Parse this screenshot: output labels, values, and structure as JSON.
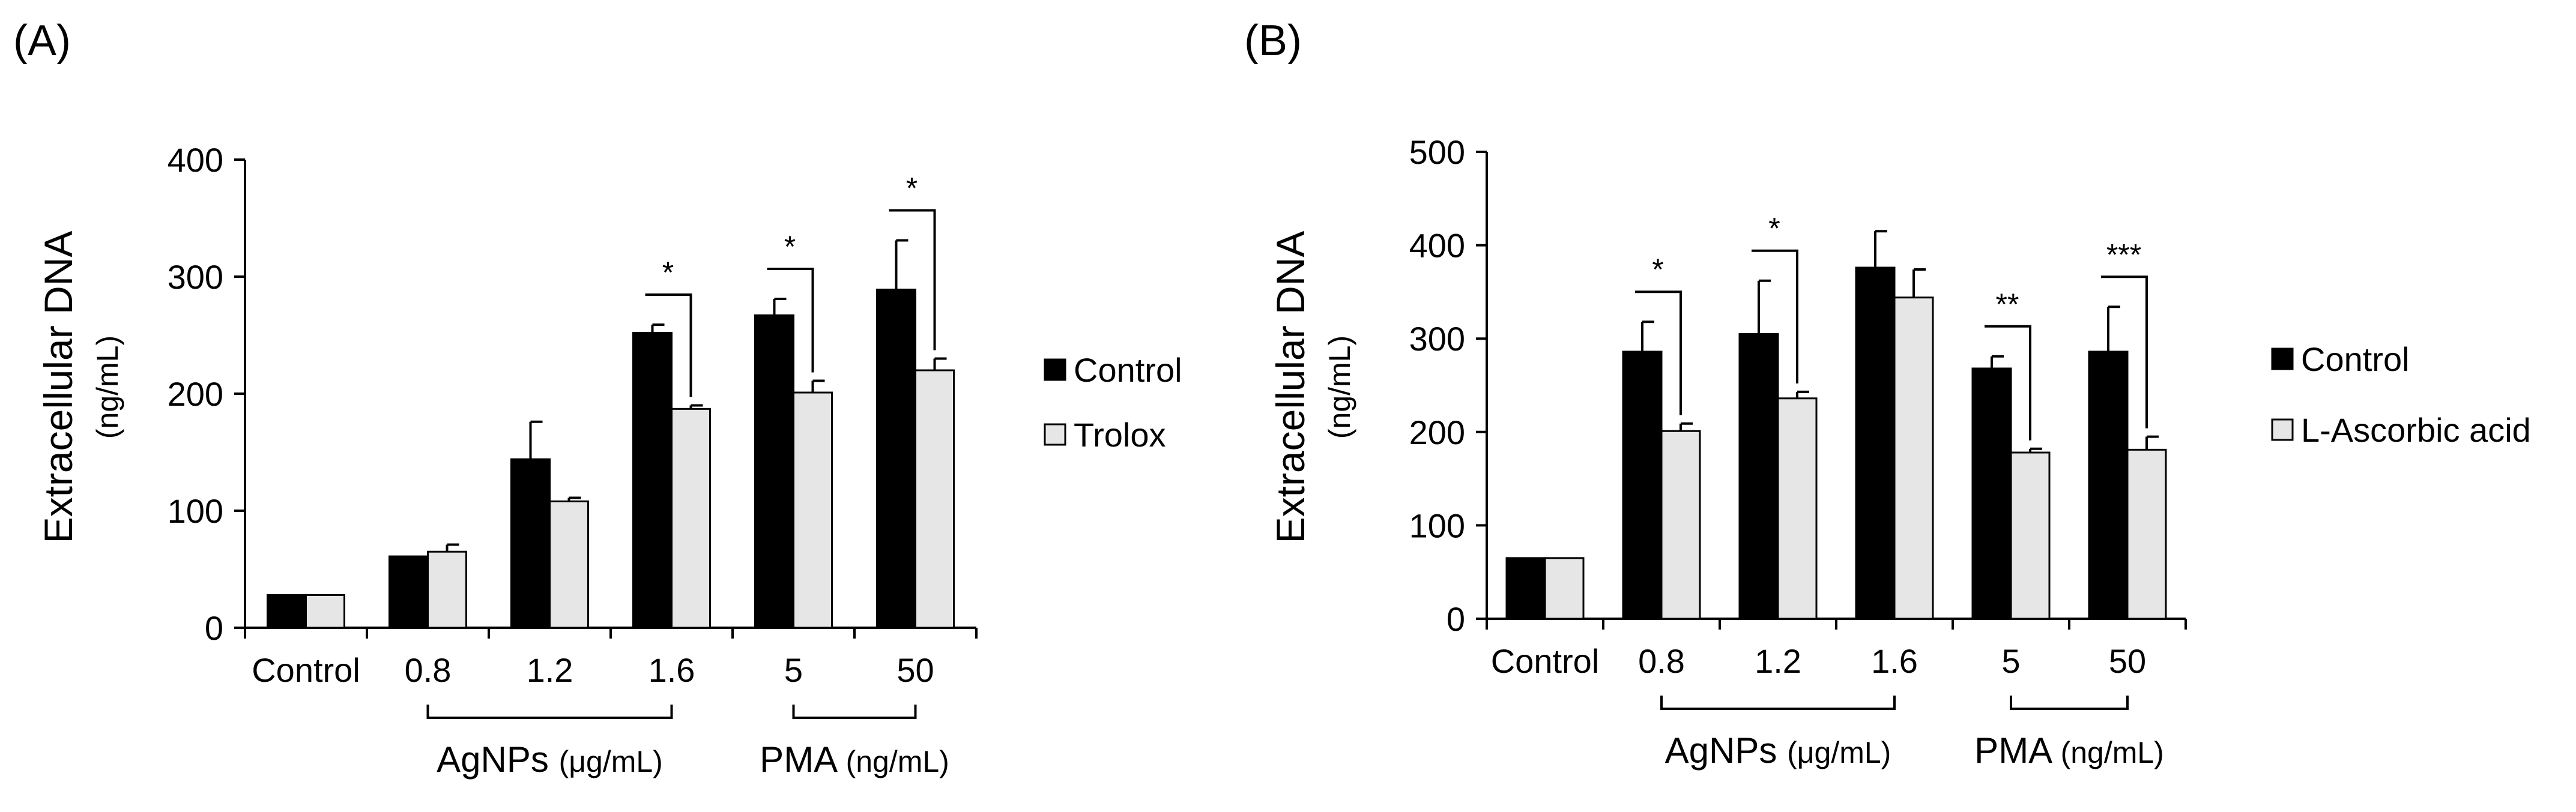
{
  "chart_data": [
    {
      "panel": "(A)",
      "type": "bar",
      "ylabel": "Extracellular DNA",
      "ylabel_unit": "(ng/mL)",
      "ylim": [
        0,
        400
      ],
      "yticks": [
        0,
        100,
        200,
        300,
        400
      ],
      "categories": [
        "Control",
        "0.8",
        "1.2",
        "1.6",
        "5",
        "50"
      ],
      "series": [
        {
          "name": "Control",
          "color": "#000000",
          "values": [
            28,
            61,
            144,
            252,
            267,
            289
          ],
          "errors": [
            0,
            0,
            32,
            7,
            14,
            42
          ]
        },
        {
          "name": "Trolox",
          "color": "#e6e6e6",
          "values": [
            28,
            65,
            108,
            187,
            201,
            220
          ],
          "errors": [
            0,
            6,
            3,
            3,
            10,
            10
          ]
        }
      ],
      "groups": [
        {
          "name": "AgNPs",
          "unit": "(μg/mL)",
          "from": 1,
          "to": 3
        },
        {
          "name": "PMA",
          "unit": "(ng/mL)",
          "from": 4,
          "to": 5
        }
      ],
      "significance": [
        {
          "category": 3,
          "label": "*"
        },
        {
          "category": 4,
          "label": "*"
        },
        {
          "category": 5,
          "label": "*"
        }
      ],
      "legend_position": "right"
    },
    {
      "panel": "(B)",
      "type": "bar",
      "ylabel": "Extracellular DNA",
      "ylabel_unit": "(ng/mL)",
      "ylim": [
        0,
        500
      ],
      "yticks": [
        0,
        100,
        200,
        300,
        400,
        500
      ],
      "categories": [
        "Control",
        "0.8",
        "1.2",
        "1.6",
        "5",
        "50"
      ],
      "series": [
        {
          "name": "Control",
          "color": "#000000",
          "values": [
            65,
            286,
            305,
            376,
            268,
            286
          ],
          "errors": [
            0,
            32,
            57,
            39,
            13,
            48
          ]
        },
        {
          "name": "L-Ascorbic acid",
          "color": "#e6e6e6",
          "values": [
            65,
            201,
            236,
            344,
            178,
            181
          ],
          "errors": [
            0,
            8,
            7,
            30,
            4,
            14
          ]
        }
      ],
      "groups": [
        {
          "name": "AgNPs",
          "unit": "(μg/mL)",
          "from": 1,
          "to": 3
        },
        {
          "name": "PMA",
          "unit": "(ng/mL)",
          "from": 4,
          "to": 5
        }
      ],
      "significance": [
        {
          "category": 1,
          "label": "*"
        },
        {
          "category": 2,
          "label": "*"
        },
        {
          "category": 4,
          "label": "**"
        },
        {
          "category": 5,
          "label": "***"
        }
      ],
      "legend_position": "right"
    }
  ]
}
